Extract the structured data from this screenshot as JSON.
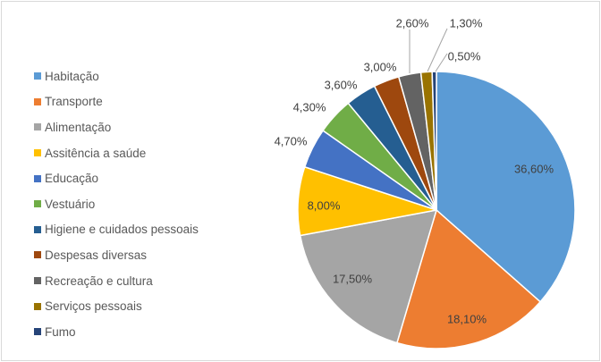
{
  "chart_data": {
    "type": "pie",
    "title": "",
    "legend_position": "left",
    "start_angle_deg": 0,
    "direction": "clockwise",
    "slices": [
      {
        "label": "Habitação",
        "value": 36.6,
        "display": "36,60%",
        "color": "#5b9bd5"
      },
      {
        "label": "Transporte",
        "value": 18.1,
        "display": "18,10%",
        "color": "#ed7d31"
      },
      {
        "label": "Alimentação",
        "value": 17.5,
        "display": "17,50%",
        "color": "#a5a5a5"
      },
      {
        "label": "Assitência a saúde",
        "value": 8.0,
        "display": "8,00%",
        "color": "#ffc000"
      },
      {
        "label": "Educação",
        "value": 4.7,
        "display": "4,70%",
        "color": "#4472c4"
      },
      {
        "label": "Vestuário",
        "value": 4.3,
        "display": "4,30%",
        "color": "#70ad47"
      },
      {
        "label": "Higiene e cuidados pessoais",
        "value": 3.6,
        "display": "3,60%",
        "color": "#255e91"
      },
      {
        "label": "Despesas diversas",
        "value": 3.0,
        "display": "3,00%",
        "color": "#9e480e"
      },
      {
        "label": "Recreação e cultura",
        "value": 2.6,
        "display": "2,60%",
        "color": "#636363"
      },
      {
        "label": "Serviços pessoais",
        "value": 1.3,
        "display": "1,30%",
        "color": "#997300"
      },
      {
        "label": "Fumo",
        "value": 0.5,
        "display": "0,50%",
        "color": "#264478"
      }
    ]
  }
}
